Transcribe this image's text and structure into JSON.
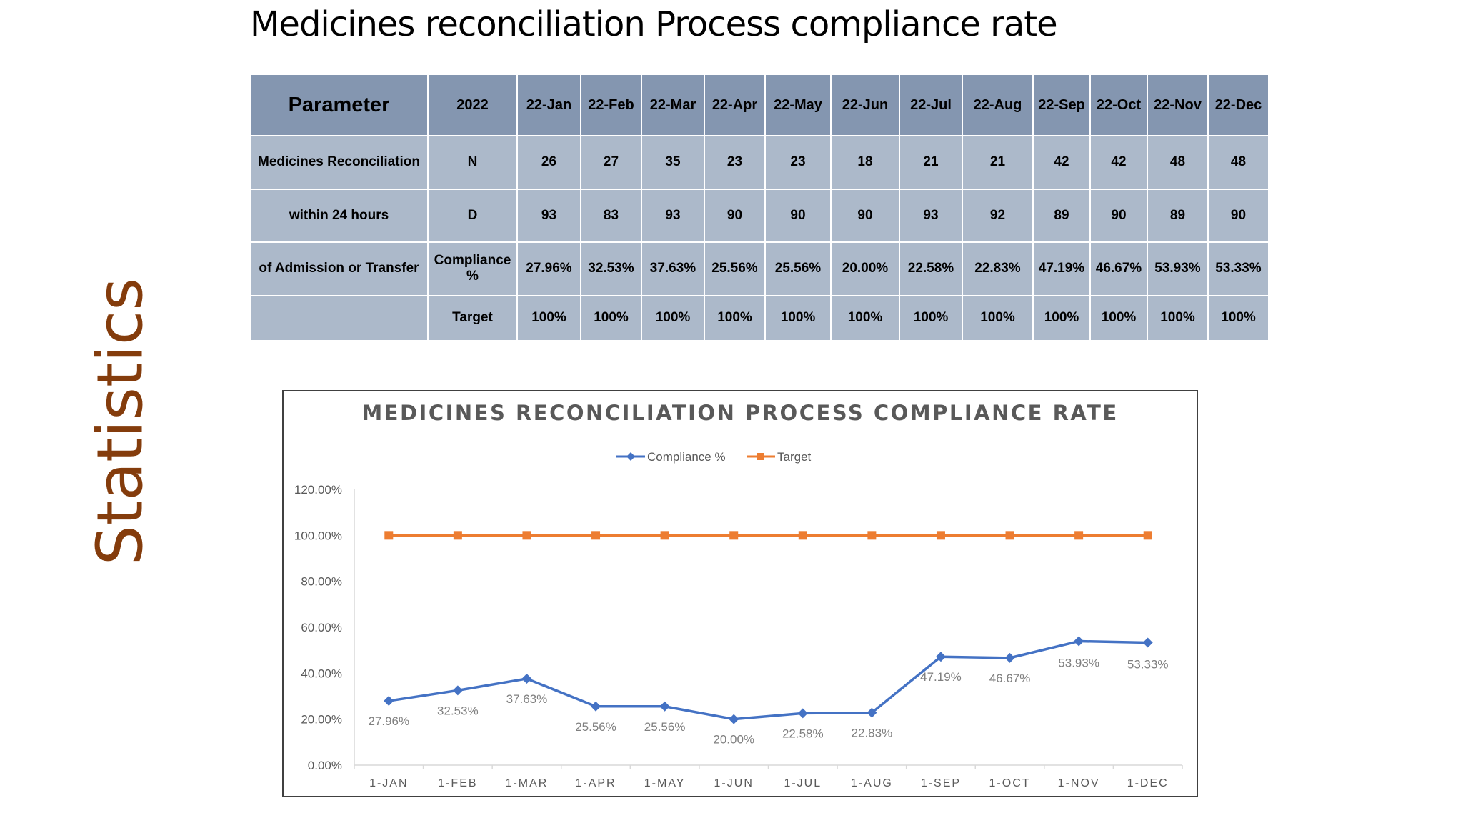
{
  "page_title": "Medicines reconciliation Process compliance rate",
  "side_label": "Statistics",
  "table": {
    "header": [
      "Parameter",
      "2022",
      "22-Jan",
      "22-Feb",
      "22-Mar",
      "22-Apr",
      "22-May",
      "22-Jun",
      "22-Jul",
      "22-Aug",
      "22-Sep",
      "22-Oct",
      "22-Nov",
      "22-Dec"
    ],
    "rows": [
      [
        "Medicines Reconciliation",
        "N",
        "26",
        "27",
        "35",
        "23",
        "23",
        "18",
        "21",
        "21",
        "42",
        "42",
        "48",
        "48"
      ],
      [
        "within 24 hours",
        "D",
        "93",
        "83",
        "93",
        "90",
        "90",
        "90",
        "93",
        "92",
        "89",
        "90",
        "89",
        "90"
      ],
      [
        "of Admission or Transfer",
        "Compliance %",
        "27.96%",
        "32.53%",
        "37.63%",
        "25.56%",
        "25.56%",
        "20.00%",
        "22.58%",
        "22.83%",
        "47.19%",
        "46.67%",
        "53.93%",
        "53.33%"
      ],
      [
        "",
        "Target",
        "100%",
        "100%",
        "100%",
        "100%",
        "100%",
        "100%",
        "100%",
        "100%",
        "100%",
        "100%",
        "100%",
        "100%"
      ]
    ]
  },
  "chart_data": {
    "type": "line",
    "title": "MEDICINES RECONCILIATION PROCESS COMPLIANCE RATE",
    "categories": [
      "1-JAN",
      "1-FEB",
      "1-MAR",
      "1-APR",
      "1-MAY",
      "1-JUN",
      "1-JUL",
      "1-AUG",
      "1-SEP",
      "1-OCT",
      "1-NOV",
      "1-DEC"
    ],
    "series": [
      {
        "name": "Compliance %",
        "values": [
          27.96,
          32.53,
          37.63,
          25.56,
          25.56,
          20.0,
          22.58,
          22.83,
          47.19,
          46.67,
          53.93,
          53.33
        ],
        "labels": [
          "27.96%",
          "32.53%",
          "37.63%",
          "25.56%",
          "25.56%",
          "20.00%",
          "22.58%",
          "22.83%",
          "47.19%",
          "46.67%",
          "53.93%",
          "53.33%"
        ],
        "color": "#4472c4",
        "marker": "diamond"
      },
      {
        "name": "Target",
        "values": [
          100,
          100,
          100,
          100,
          100,
          100,
          100,
          100,
          100,
          100,
          100,
          100
        ],
        "color": "#ed7d31",
        "marker": "square"
      }
    ],
    "yticks": [
      "0.00%",
      "20.00%",
      "40.00%",
      "60.00%",
      "80.00%",
      "100.00%",
      "120.00%"
    ],
    "ylim": [
      0,
      120
    ],
    "xlabel": "",
    "ylabel": "",
    "legend": "top",
    "grid": false
  }
}
